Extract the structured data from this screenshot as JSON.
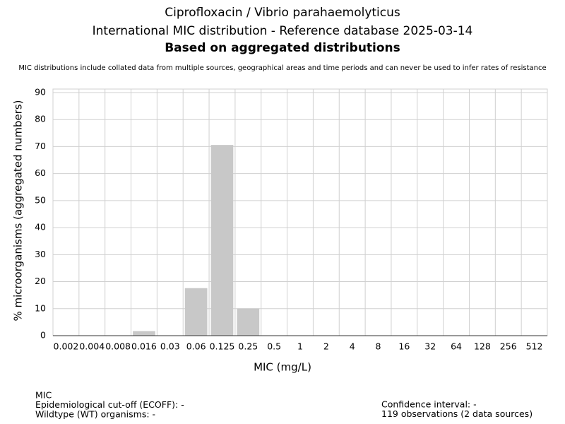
{
  "chart_data": {
    "type": "bar",
    "title": "Ciprofloxacin / Vibrio parahaemolyticus",
    "subtitle": "International MIC distribution - Reference database 2025-03-14",
    "heading": "Based on aggregated distributions",
    "note": "MIC distributions include collated data from multiple sources, geographical areas and time periods and can never be used to infer rates of resistance",
    "x_label": "MIC (mg/L)",
    "y_label": "% microorganisms (aggregated numbers)",
    "categories": [
      "0.002",
      "0.004",
      "0.008",
      "0.016",
      "0.03",
      "0.06",
      "0.125",
      "0.25",
      "0.5",
      "1",
      "2",
      "4",
      "8",
      "16",
      "32",
      "64",
      "128",
      "256",
      "512"
    ],
    "values": [
      0,
      0,
      0,
      1.7,
      0,
      17.6,
      70.6,
      10.1,
      0,
      0,
      0,
      0,
      0,
      0,
      0,
      0,
      0,
      0,
      0
    ],
    "color": "#c8c8c8",
    "ylim": [
      0,
      91.3
    ],
    "yticks": [
      0,
      10,
      20,
      30,
      40,
      50,
      60,
      70,
      80,
      90
    ],
    "grid": true,
    "footer_left": [
      "MIC",
      "Epidemiological cut-off (ECOFF): -",
      "Wildtype (WT) organisms:  -"
    ],
    "footer_right": [
      "Confidence interval: -",
      "119 observations (2 data sources)"
    ]
  }
}
